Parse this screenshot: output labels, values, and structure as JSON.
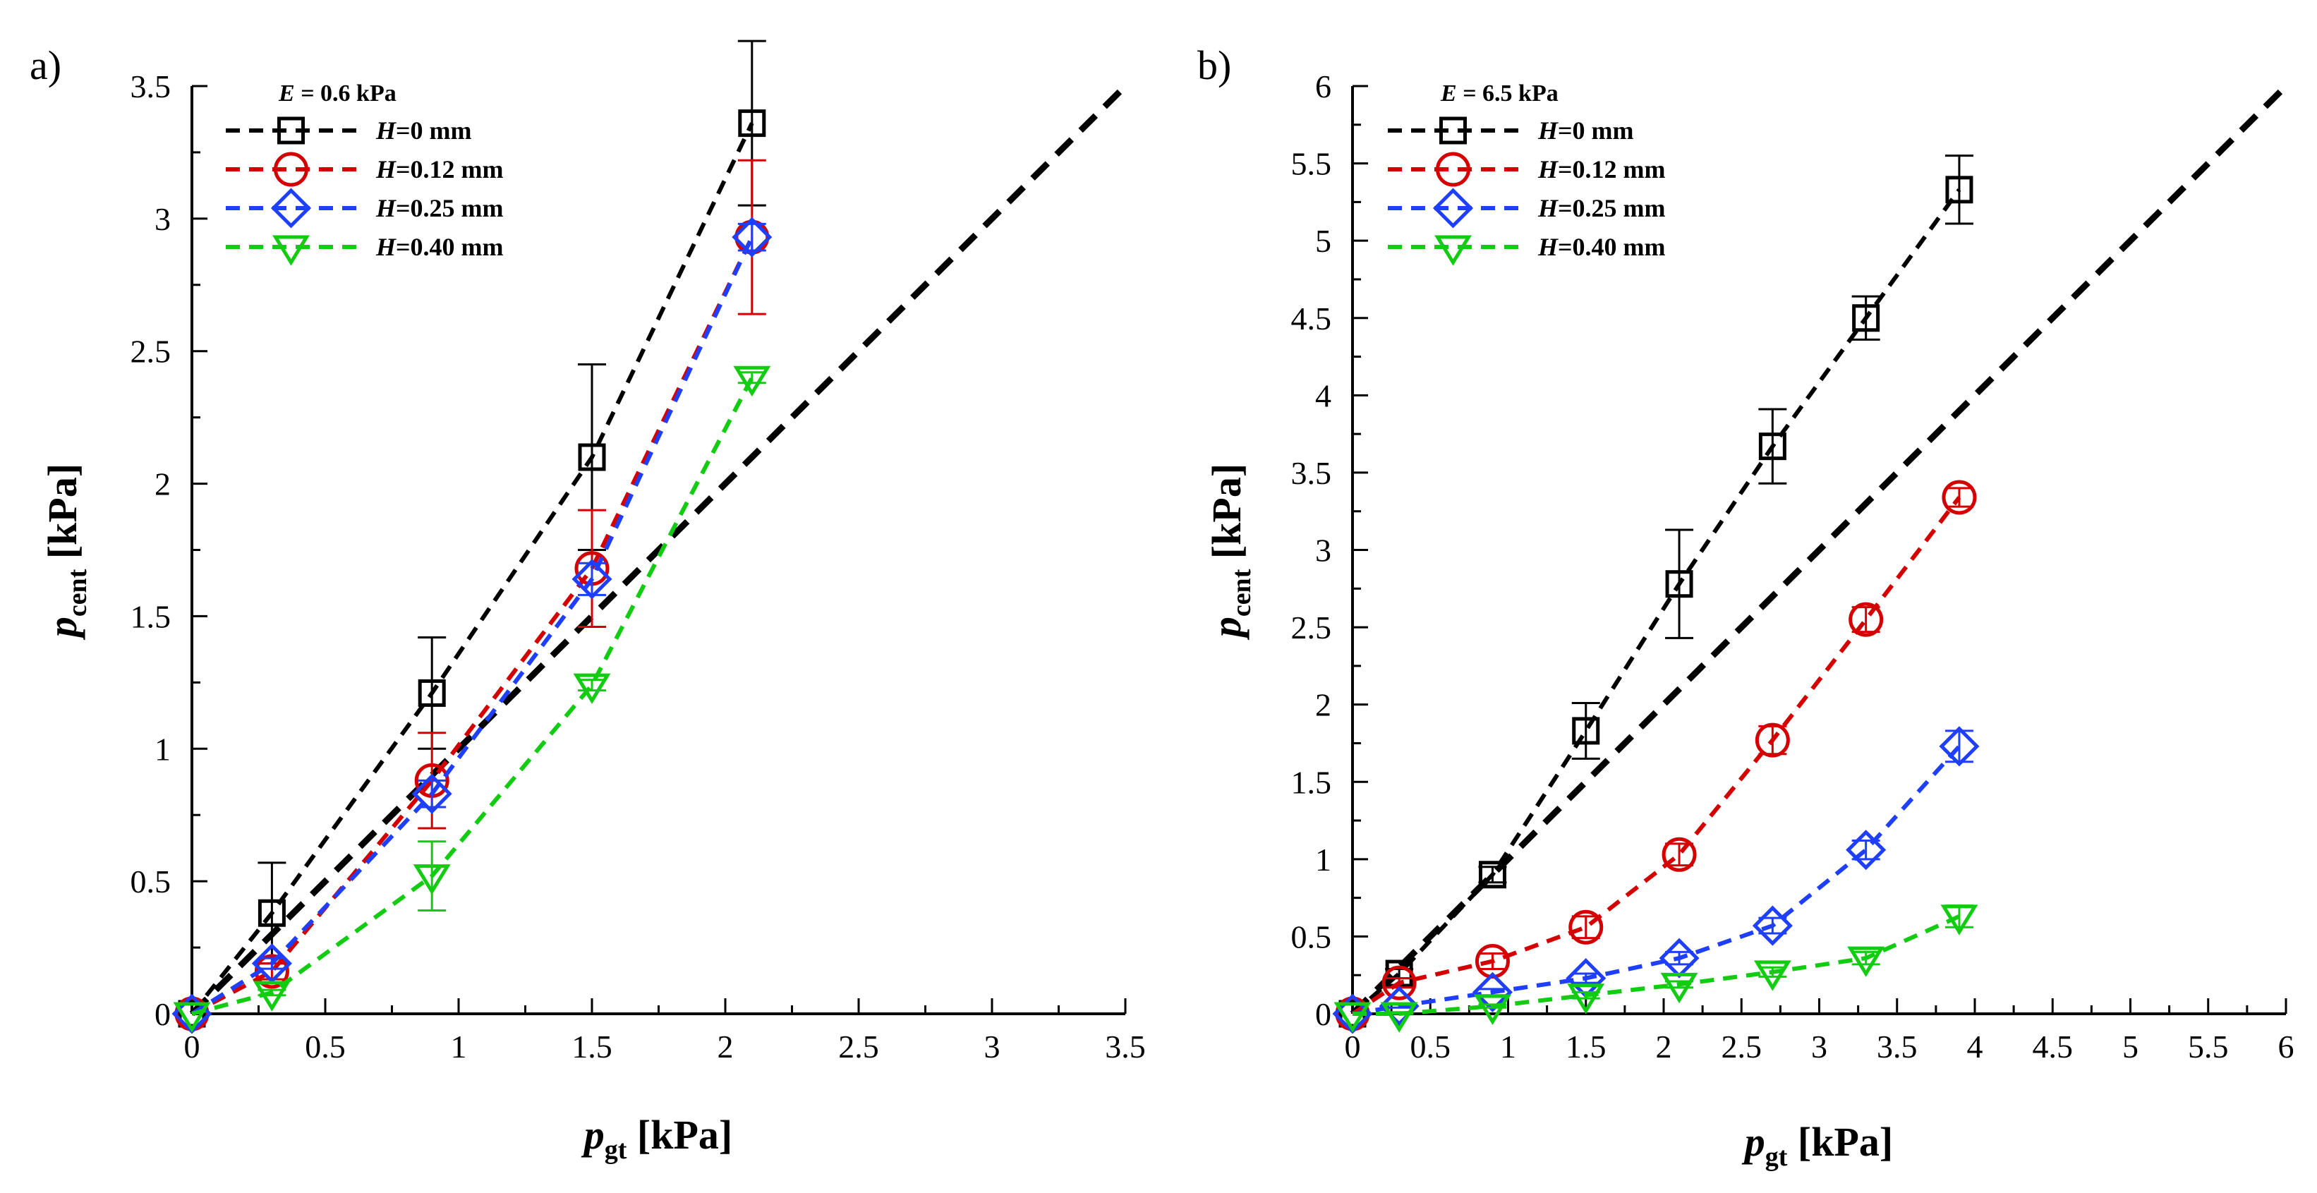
{
  "chart_data": [
    {
      "type": "line",
      "panel_label": "a)",
      "legend_title": "E = 0.6 kPa",
      "legend_title_var": "E",
      "legend_title_rest": " = 0.6 kPa",
      "xlabel_main": "p",
      "xlabel_sub": "gt",
      "xlabel_unit": " [kPa]",
      "ylabel_main": "p",
      "ylabel_sub": "cent",
      "ylabel_unit": " [kPa]",
      "xlim": [
        0,
        3.5
      ],
      "ylim": [
        0,
        3.5
      ],
      "x_ticks": [
        "0",
        "0.5",
        "1",
        "1.5",
        "2",
        "2.5",
        "3",
        "3.5"
      ],
      "y_ticks": [
        "0",
        "0.5",
        "1",
        "1.5",
        "2",
        "2.5",
        "3",
        "3.5"
      ],
      "reference_line": {
        "x": [
          0,
          3.5
        ],
        "y": [
          0,
          3.5
        ]
      },
      "series": [
        {
          "name": "H=0 mm",
          "label_var": "H",
          "label_rest": "=0 mm",
          "color": "#000000",
          "marker": "square",
          "x": [
            0,
            0.3,
            0.9,
            1.5,
            2.1
          ],
          "y": [
            0,
            0.38,
            1.21,
            2.1,
            3.36
          ],
          "err": [
            0,
            0.19,
            0.21,
            0.35,
            0.31
          ]
        },
        {
          "name": "H=0.12 mm",
          "label_var": "H",
          "label_rest": "=0.12 mm",
          "color": "#d40000",
          "marker": "circle",
          "x": [
            0,
            0.3,
            0.9,
            1.5,
            2.1
          ],
          "y": [
            0,
            0.16,
            0.88,
            1.68,
            2.93
          ],
          "err": [
            0,
            0.03,
            0.18,
            0.22,
            0.29
          ]
        },
        {
          "name": "H=0.25 mm",
          "label_var": "H",
          "label_rest": "=0.25 mm",
          "color": "#1f3fff",
          "marker": "diamond",
          "x": [
            0,
            0.3,
            0.9,
            1.5,
            2.1
          ],
          "y": [
            0,
            0.19,
            0.83,
            1.64,
            2.93
          ],
          "err": [
            0,
            0.02,
            0.05,
            0.06,
            0.05
          ]
        },
        {
          "name": "H=0.40 mm",
          "label_var": "H",
          "label_rest": "=0.40 mm",
          "color": "#11cc11",
          "marker": "triangle-down",
          "x": [
            0,
            0.3,
            0.9,
            1.5,
            2.1
          ],
          "y": [
            0,
            0.08,
            0.52,
            1.24,
            2.4
          ],
          "err": [
            0,
            0.01,
            0.13,
            0.02,
            0.02
          ]
        }
      ]
    },
    {
      "type": "line",
      "panel_label": "b)",
      "legend_title": "E = 6.5 kPa",
      "legend_title_var": "E",
      "legend_title_rest": " = 6.5 kPa",
      "xlabel_main": "p",
      "xlabel_sub": "gt",
      "xlabel_unit": " [kPa]",
      "ylabel_main": "p",
      "ylabel_sub": "cent",
      "ylabel_unit": " [kPa]",
      "xlim": [
        0,
        6
      ],
      "ylim": [
        0,
        6
      ],
      "x_ticks": [
        "0",
        "0.5",
        "1",
        "1.5",
        "2",
        "2.5",
        "3",
        "3.5",
        "4",
        "4.5",
        "5",
        "5.5",
        "6"
      ],
      "y_ticks": [
        "0",
        "0.5",
        "1",
        "1.5",
        "2",
        "2.5",
        "3",
        "3.5",
        "4",
        "4.5",
        "5",
        "5.5",
        "6"
      ],
      "reference_line": {
        "x": [
          0,
          6
        ],
        "y": [
          0,
          6
        ]
      },
      "series": [
        {
          "name": "H=0 mm",
          "label_var": "H",
          "label_rest": "=0 mm",
          "color": "#000000",
          "marker": "square",
          "x": [
            0,
            0.3,
            0.9,
            1.5,
            2.1,
            2.7,
            3.3,
            3.9
          ],
          "y": [
            0,
            0.26,
            0.9,
            1.83,
            2.78,
            3.67,
            4.5,
            5.33
          ],
          "err": [
            0,
            0.03,
            0.05,
            0.18,
            0.35,
            0.24,
            0.14,
            0.22
          ]
        },
        {
          "name": "H=0.12 mm",
          "label_var": "H",
          "label_rest": "=0.12 mm",
          "color": "#d40000",
          "marker": "circle",
          "x": [
            0,
            0.3,
            0.9,
            1.5,
            2.1,
            2.7,
            3.3,
            3.9
          ],
          "y": [
            0,
            0.2,
            0.34,
            0.56,
            1.03,
            1.77,
            2.55,
            3.34
          ],
          "err": [
            0,
            0.03,
            0.05,
            0.07,
            0.07,
            0.09,
            0.08,
            0.06
          ]
        },
        {
          "name": "H=0.25 mm",
          "label_var": "H",
          "label_rest": "=0.25 mm",
          "color": "#1f3fff",
          "marker": "diamond",
          "x": [
            0,
            0.3,
            0.9,
            1.5,
            2.1,
            2.7,
            3.3,
            3.9
          ],
          "y": [
            0,
            0.05,
            0.14,
            0.23,
            0.36,
            0.57,
            1.06,
            1.73
          ],
          "err": [
            0,
            0.01,
            0.02,
            0.03,
            0.04,
            0.05,
            0.06,
            0.1
          ]
        },
        {
          "name": "H=0.40 mm",
          "label_var": "H",
          "label_rest": "=0.40 mm",
          "color": "#11cc11",
          "marker": "triangle-down",
          "x": [
            0,
            0.3,
            0.9,
            1.5,
            2.1,
            2.7,
            3.3,
            3.9
          ],
          "y": [
            0,
            0.0,
            0.05,
            0.12,
            0.19,
            0.27,
            0.36,
            0.63
          ],
          "err": [
            0,
            0.01,
            0.01,
            0.02,
            0.02,
            0.03,
            0.04,
            0.07
          ]
        }
      ]
    }
  ]
}
